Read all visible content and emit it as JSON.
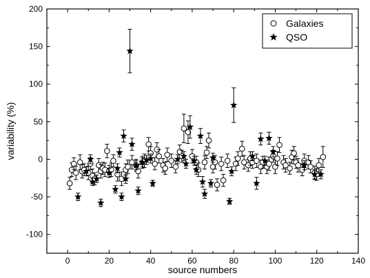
{
  "chart_data": {
    "type": "scatter",
    "title": "",
    "xlabel": "source numbers",
    "ylabel": "variability (%)",
    "xlim": [
      -10,
      140
    ],
    "ylim": [
      -125,
      200
    ],
    "xticks": [
      0,
      20,
      40,
      60,
      80,
      100,
      120,
      140
    ],
    "yticks": [
      -100,
      -50,
      0,
      50,
      100,
      150,
      200
    ],
    "grid": false,
    "legend_position": "top-right",
    "series": [
      {
        "name": "Galaxies",
        "marker": "open-circle",
        "color": "#000000",
        "points": [
          {
            "x": 1,
            "y": -32,
            "err": 8
          },
          {
            "x": 2,
            "y": -14,
            "err": 9
          },
          {
            "x": 3,
            "y": -6,
            "err": 8
          },
          {
            "x": 4,
            "y": -18,
            "err": 9
          },
          {
            "x": 6,
            "y": -4,
            "err": 10
          },
          {
            "x": 7,
            "y": -16,
            "err": 9
          },
          {
            "x": 8,
            "y": -14,
            "err": 8
          },
          {
            "x": 10,
            "y": -18,
            "err": 9
          },
          {
            "x": 11,
            "y": -6,
            "err": 8
          },
          {
            "x": 12,
            "y": -22,
            "err": 9
          },
          {
            "x": 13,
            "y": -26,
            "err": 8
          },
          {
            "x": 15,
            "y": -8,
            "err": 9
          },
          {
            "x": 16,
            "y": -16,
            "err": 9
          },
          {
            "x": 17,
            "y": -12,
            "err": 8
          },
          {
            "x": 18,
            "y": -14,
            "err": 9
          },
          {
            "x": 19,
            "y": 11,
            "err": 9
          },
          {
            "x": 20,
            "y": -16,
            "err": 8
          },
          {
            "x": 21,
            "y": -14,
            "err": 9
          },
          {
            "x": 22,
            "y": -2,
            "err": 8
          },
          {
            "x": 24,
            "y": -20,
            "err": 9
          },
          {
            "x": 26,
            "y": -26,
            "err": 9
          },
          {
            "x": 28,
            "y": -14,
            "err": 8
          },
          {
            "x": 29,
            "y": -10,
            "err": 9
          },
          {
            "x": 31,
            "y": -4,
            "err": 9
          },
          {
            "x": 33,
            "y": -8,
            "err": 8
          },
          {
            "x": 34,
            "y": -16,
            "err": 9
          },
          {
            "x": 36,
            "y": -4,
            "err": 8
          },
          {
            "x": 37,
            "y": -2,
            "err": 9
          },
          {
            "x": 39,
            "y": 20,
            "err": 9
          },
          {
            "x": 40,
            "y": 8,
            "err": 9
          },
          {
            "x": 42,
            "y": -6,
            "err": 8
          },
          {
            "x": 43,
            "y": 13,
            "err": 9
          },
          {
            "x": 44,
            "y": 4,
            "err": 9
          },
          {
            "x": 46,
            "y": -8,
            "err": 9
          },
          {
            "x": 47,
            "y": -12,
            "err": 8
          },
          {
            "x": 48,
            "y": 6,
            "err": 9
          },
          {
            "x": 50,
            "y": -2,
            "err": 9
          },
          {
            "x": 52,
            "y": -10,
            "err": 8
          },
          {
            "x": 54,
            "y": 10,
            "err": 9
          },
          {
            "x": 55,
            "y": 4,
            "err": 8
          },
          {
            "x": 56,
            "y": 41,
            "err": 19
          },
          {
            "x": 58,
            "y": 36,
            "err": 15
          },
          {
            "x": 60,
            "y": 4,
            "err": 9
          },
          {
            "x": 62,
            "y": -4,
            "err": 8
          },
          {
            "x": 63,
            "y": -14,
            "err": 9
          },
          {
            "x": 66,
            "y": -4,
            "err": 9
          },
          {
            "x": 67,
            "y": 9,
            "err": 8
          },
          {
            "x": 68,
            "y": 25,
            "err": 10
          },
          {
            "x": 70,
            "y": -10,
            "err": 8
          },
          {
            "x": 71,
            "y": -4,
            "err": 9
          },
          {
            "x": 72,
            "y": -34,
            "err": 8
          },
          {
            "x": 74,
            "y": -6,
            "err": 9
          },
          {
            "x": 75,
            "y": -28,
            "err": 8
          },
          {
            "x": 77,
            "y": -2,
            "err": 9
          },
          {
            "x": 81,
            "y": -6,
            "err": 9
          },
          {
            "x": 82,
            "y": 1,
            "err": 9
          },
          {
            "x": 84,
            "y": 14,
            "err": 10
          },
          {
            "x": 85,
            "y": -4,
            "err": 9
          },
          {
            "x": 87,
            "y": -8,
            "err": 8
          },
          {
            "x": 88,
            "y": 1,
            "err": 9
          },
          {
            "x": 89,
            "y": -4,
            "err": 8
          },
          {
            "x": 91,
            "y": -2,
            "err": 9
          },
          {
            "x": 93,
            "y": -10,
            "err": 9
          },
          {
            "x": 94,
            "y": -4,
            "err": 8
          },
          {
            "x": 96,
            "y": -10,
            "err": 9
          },
          {
            "x": 97,
            "y": -6,
            "err": 9
          },
          {
            "x": 99,
            "y": 4,
            "err": 8
          },
          {
            "x": 100,
            "y": -10,
            "err": 9
          },
          {
            "x": 101,
            "y": 1,
            "err": 9
          },
          {
            "x": 102,
            "y": 19,
            "err": 10
          },
          {
            "x": 104,
            "y": -4,
            "err": 9
          },
          {
            "x": 105,
            "y": -8,
            "err": 9
          },
          {
            "x": 107,
            "y": -12,
            "err": 8
          },
          {
            "x": 108,
            "y": 3,
            "err": 9
          },
          {
            "x": 109,
            "y": 8,
            "err": 9
          },
          {
            "x": 110,
            "y": -4,
            "err": 8
          },
          {
            "x": 111,
            "y": -8,
            "err": 9
          },
          {
            "x": 113,
            "y": -14,
            "err": 8
          },
          {
            "x": 114,
            "y": -2,
            "err": 9
          },
          {
            "x": 116,
            "y": -4,
            "err": 9
          },
          {
            "x": 117,
            "y": -10,
            "err": 8
          },
          {
            "x": 119,
            "y": -18,
            "err": 9
          },
          {
            "x": 120,
            "y": -20,
            "err": 8
          },
          {
            "x": 121,
            "y": -8,
            "err": 9
          },
          {
            "x": 123,
            "y": 3,
            "err": 14
          }
        ]
      },
      {
        "name": "QSO",
        "marker": "filled-star",
        "color": "#000000",
        "points": [
          {
            "x": 5,
            "y": -50,
            "err": 5
          },
          {
            "x": 9,
            "y": -16,
            "err": 6
          },
          {
            "x": 11,
            "y": 0,
            "err": 6
          },
          {
            "x": 12,
            "y": -30,
            "err": 5
          },
          {
            "x": 14,
            "y": -26,
            "err": 5
          },
          {
            "x": 16,
            "y": -58,
            "err": 5
          },
          {
            "x": 20,
            "y": -18,
            "err": 6
          },
          {
            "x": 23,
            "y": -40,
            "err": 5
          },
          {
            "x": 24,
            "y": -12,
            "err": 6
          },
          {
            "x": 25,
            "y": 9,
            "err": 6
          },
          {
            "x": 26,
            "y": -50,
            "err": 5
          },
          {
            "x": 27,
            "y": 31,
            "err": 8
          },
          {
            "x": 28,
            "y": -26,
            "err": 6
          },
          {
            "x": 30,
            "y": 144,
            "err": 29
          },
          {
            "x": 31,
            "y": 20,
            "err": 8
          },
          {
            "x": 33,
            "y": -8,
            "err": 6
          },
          {
            "x": 34,
            "y": -42,
            "err": 5
          },
          {
            "x": 36,
            "y": -4,
            "err": 6
          },
          {
            "x": 38,
            "y": -1,
            "err": 6
          },
          {
            "x": 40,
            "y": 1,
            "err": 6
          },
          {
            "x": 41,
            "y": -32,
            "err": 4
          },
          {
            "x": 53,
            "y": 0,
            "err": 6
          },
          {
            "x": 56,
            "y": 4,
            "err": 6
          },
          {
            "x": 57,
            "y": -6,
            "err": 6
          },
          {
            "x": 59,
            "y": 43,
            "err": 15
          },
          {
            "x": 61,
            "y": -2,
            "err": 6
          },
          {
            "x": 62,
            "y": -14,
            "err": 6
          },
          {
            "x": 64,
            "y": 31,
            "err": 10
          },
          {
            "x": 65,
            "y": -30,
            "err": 7
          },
          {
            "x": 66,
            "y": -46,
            "err": 6
          },
          {
            "x": 69,
            "y": -32,
            "err": 5
          },
          {
            "x": 70,
            "y": 2,
            "err": 6
          },
          {
            "x": 78,
            "y": -56,
            "err": 4
          },
          {
            "x": 79,
            "y": -16,
            "err": 6
          },
          {
            "x": 80,
            "y": 72,
            "err": 23
          },
          {
            "x": 89,
            "y": 4,
            "err": 6
          },
          {
            "x": 91,
            "y": -32,
            "err": 8
          },
          {
            "x": 93,
            "y": 27,
            "err": 8
          },
          {
            "x": 95,
            "y": -2,
            "err": 6
          },
          {
            "x": 97,
            "y": 28,
            "err": 8
          },
          {
            "x": 99,
            "y": 10,
            "err": 7
          },
          {
            "x": 114,
            "y": -8,
            "err": 6
          },
          {
            "x": 119,
            "y": -20,
            "err": 6
          },
          {
            "x": 122,
            "y": -20,
            "err": 6
          }
        ]
      }
    ]
  }
}
